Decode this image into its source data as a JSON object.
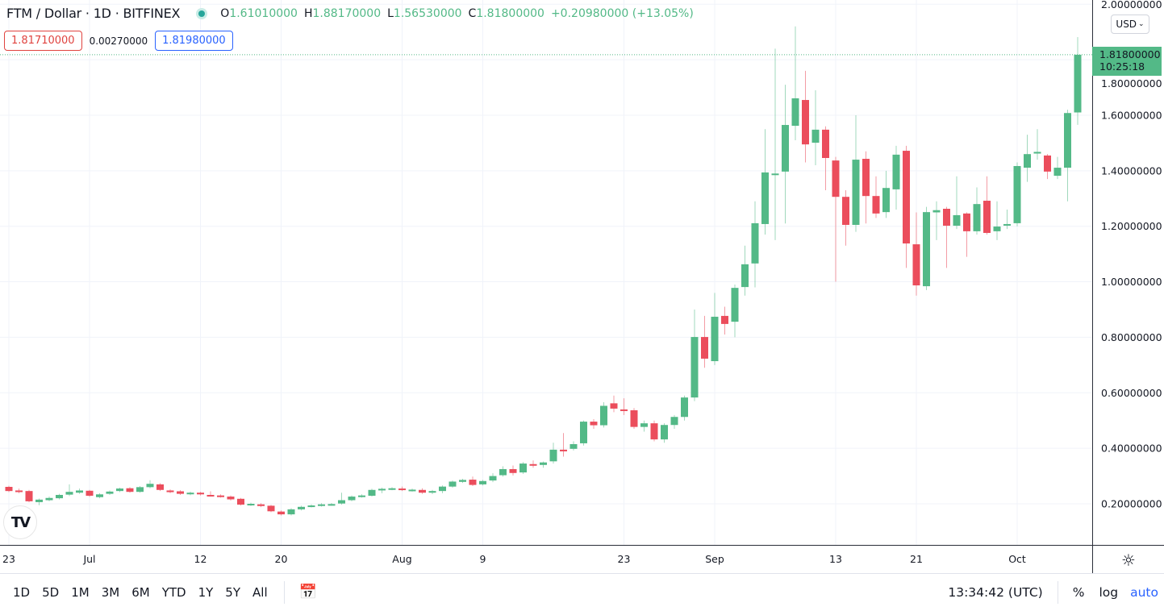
{
  "header": {
    "symbol": "FTM / Dollar · 1D · BITFINEX",
    "open_label": "O",
    "open": "1.61010000",
    "high_label": "H",
    "high": "1.88170000",
    "low_label": "L",
    "low": "1.56530000",
    "close_label": "C",
    "close": "1.81800000",
    "change": "+0.20980000 (+13.05%)"
  },
  "quote": {
    "sell": "1.81710000",
    "spread": "0.00270000",
    "buy": "1.81980000"
  },
  "currency": "USD",
  "last_price": {
    "price": "1.81800000",
    "countdown": "10:25:18"
  },
  "logo": "TV",
  "toolbar": {
    "ranges": [
      "1D",
      "5D",
      "1M",
      "3M",
      "6M",
      "YTD",
      "1Y",
      "5Y",
      "All"
    ],
    "time": "13:34:42 (UTC)",
    "percent": "%",
    "log": "log",
    "auto": "auto"
  },
  "colors": {
    "up": "#53b987",
    "down": "#eb4d5c",
    "grid": "#f0f3fa",
    "accent": "#2962ff"
  },
  "chart_data": {
    "type": "candlestick",
    "ylim": [
      0,
      2.0
    ],
    "yticks": [
      "0.20000000",
      "0.40000000",
      "0.60000000",
      "0.80000000",
      "1.00000000",
      "1.20000000",
      "1.40000000",
      "1.60000000",
      "1.80000000",
      "2.00000000"
    ],
    "xticks": [
      {
        "date": "Jun 23",
        "label": "23"
      },
      {
        "date": "Jul 1",
        "label": "Jul"
      },
      {
        "date": "Jul 12",
        "label": "12"
      },
      {
        "date": "Jul 20",
        "label": "20"
      },
      {
        "date": "Aug 1",
        "label": "Aug"
      },
      {
        "date": "Aug 9",
        "label": "9"
      },
      {
        "date": "Aug 23",
        "label": "23"
      },
      {
        "date": "Sep 1",
        "label": "Sep"
      },
      {
        "date": "Sep 13",
        "label": "13"
      },
      {
        "date": "Sep 21",
        "label": "21"
      },
      {
        "date": "Oct 1",
        "label": "Oct"
      }
    ],
    "grid": true,
    "columns": [
      "date",
      "open",
      "high",
      "low",
      "close"
    ],
    "candles": [
      [
        "Jun 23",
        0.261,
        0.265,
        0.242,
        0.246
      ],
      [
        "Jun 24",
        0.248,
        0.255,
        0.238,
        0.243
      ],
      [
        "Jun 25",
        0.246,
        0.25,
        0.205,
        0.209
      ],
      [
        "Jun 26",
        0.206,
        0.219,
        0.195,
        0.215
      ],
      [
        "Jun 27",
        0.213,
        0.226,
        0.209,
        0.221
      ],
      [
        "Jun 28",
        0.22,
        0.236,
        0.216,
        0.232
      ],
      [
        "Jun 29",
        0.233,
        0.27,
        0.228,
        0.243
      ],
      [
        "Jun 30",
        0.24,
        0.255,
        0.236,
        0.248
      ],
      [
        "Jul 1",
        0.247,
        0.25,
        0.225,
        0.229
      ],
      [
        "Jul 2",
        0.224,
        0.238,
        0.22,
        0.234
      ],
      [
        "Jul 3",
        0.236,
        0.248,
        0.232,
        0.244
      ],
      [
        "Jul 4",
        0.246,
        0.258,
        0.242,
        0.255
      ],
      [
        "Jul 5",
        0.256,
        0.26,
        0.24,
        0.243
      ],
      [
        "Jul 6",
        0.243,
        0.264,
        0.24,
        0.26
      ],
      [
        "Jul 7",
        0.26,
        0.285,
        0.256,
        0.272
      ],
      [
        "Jul 8",
        0.27,
        0.274,
        0.246,
        0.25
      ],
      [
        "Jul 9",
        0.248,
        0.252,
        0.238,
        0.242
      ],
      [
        "Jul 10",
        0.245,
        0.249,
        0.232,
        0.236
      ],
      [
        "Jul 11",
        0.235,
        0.244,
        0.231,
        0.24
      ],
      [
        "Jul 12",
        0.24,
        0.243,
        0.23,
        0.234
      ],
      [
        "Jul 13",
        0.232,
        0.245,
        0.226,
        0.23
      ],
      [
        "Jul 14",
        0.23,
        0.234,
        0.222,
        0.226
      ],
      [
        "Jul 15",
        0.226,
        0.23,
        0.212,
        0.216
      ],
      [
        "Jul 16",
        0.218,
        0.221,
        0.194,
        0.197
      ],
      [
        "Jul 17",
        0.198,
        0.204,
        0.192,
        0.2
      ],
      [
        "Jul 18",
        0.198,
        0.202,
        0.188,
        0.192
      ],
      [
        "Jul 19",
        0.193,
        0.196,
        0.17,
        0.173
      ],
      [
        "Jul 20",
        0.172,
        0.176,
        0.158,
        0.162
      ],
      [
        "Jul 21",
        0.162,
        0.184,
        0.158,
        0.18
      ],
      [
        "Jul 22",
        0.18,
        0.193,
        0.176,
        0.189
      ],
      [
        "Jul 23",
        0.191,
        0.198,
        0.187,
        0.194
      ],
      [
        "Jul 24",
        0.194,
        0.202,
        0.19,
        0.198
      ],
      [
        "Jul 25",
        0.197,
        0.203,
        0.193,
        0.199
      ],
      [
        "Jul 26",
        0.201,
        0.24,
        0.197,
        0.213
      ],
      [
        "Jul 27",
        0.213,
        0.23,
        0.209,
        0.226
      ],
      [
        "Jul 28",
        0.227,
        0.234,
        0.222,
        0.23
      ],
      [
        "Jul 29",
        0.229,
        0.254,
        0.226,
        0.25
      ],
      [
        "Jul 30",
        0.251,
        0.258,
        0.238,
        0.254
      ],
      [
        "Jul 31",
        0.253,
        0.26,
        0.249,
        0.256
      ],
      [
        "Aug 1",
        0.255,
        0.262,
        0.246,
        0.25
      ],
      [
        "Aug 2",
        0.249,
        0.255,
        0.244,
        0.251
      ],
      [
        "Aug 3",
        0.25,
        0.256,
        0.236,
        0.24
      ],
      [
        "Aug 4",
        0.24,
        0.25,
        0.235,
        0.246
      ],
      [
        "Aug 5",
        0.246,
        0.266,
        0.238,
        0.262
      ],
      [
        "Aug 6",
        0.262,
        0.284,
        0.258,
        0.28
      ],
      [
        "Aug 7",
        0.279,
        0.29,
        0.275,
        0.286
      ],
      [
        "Aug 8",
        0.287,
        0.298,
        0.264,
        0.268
      ],
      [
        "Aug 9",
        0.27,
        0.286,
        0.266,
        0.282
      ],
      [
        "Aug 10",
        0.284,
        0.31,
        0.278,
        0.3
      ],
      [
        "Aug 11",
        0.303,
        0.335,
        0.298,
        0.325
      ],
      [
        "Aug 12",
        0.325,
        0.338,
        0.302,
        0.311
      ],
      [
        "Aug 13",
        0.313,
        0.35,
        0.308,
        0.345
      ],
      [
        "Aug 14",
        0.343,
        0.356,
        0.33,
        0.34
      ],
      [
        "Aug 15",
        0.34,
        0.352,
        0.33,
        0.349
      ],
      [
        "Aug 16",
        0.353,
        0.42,
        0.345,
        0.395
      ],
      [
        "Aug 17",
        0.395,
        0.455,
        0.37,
        0.389
      ],
      [
        "Aug 18",
        0.398,
        0.425,
        0.392,
        0.415
      ],
      [
        "Aug 19",
        0.418,
        0.5,
        0.41,
        0.496
      ],
      [
        "Aug 20",
        0.496,
        0.505,
        0.47,
        0.483
      ],
      [
        "Aug 21",
        0.483,
        0.566,
        0.475,
        0.553
      ],
      [
        "Aug 22",
        0.562,
        0.59,
        0.53,
        0.543
      ],
      [
        "Aug 23",
        0.54,
        0.58,
        0.52,
        0.537
      ],
      [
        "Aug 24",
        0.537,
        0.545,
        0.47,
        0.477
      ],
      [
        "Aug 25",
        0.477,
        0.5,
        0.46,
        0.49
      ],
      [
        "Aug 26",
        0.49,
        0.5,
        0.425,
        0.432
      ],
      [
        "Aug 27",
        0.432,
        0.49,
        0.42,
        0.484
      ],
      [
        "Aug 28",
        0.484,
        0.52,
        0.47,
        0.513
      ],
      [
        "Aug 29",
        0.513,
        0.59,
        0.5,
        0.583
      ],
      [
        "Aug 30",
        0.583,
        0.9,
        0.57,
        0.801
      ],
      [
        "Aug 31",
        0.801,
        0.877,
        0.69,
        0.723
      ],
      [
        "Sep 1",
        0.714,
        0.96,
        0.7,
        0.874
      ],
      [
        "Sep 2",
        0.877,
        0.91,
        0.81,
        0.848
      ],
      [
        "Sep 3",
        0.856,
        0.99,
        0.8,
        0.978
      ],
      [
        "Sep 4",
        0.981,
        1.13,
        0.95,
        1.063
      ],
      [
        "Sep 5",
        1.066,
        1.29,
        0.98,
        1.211
      ],
      [
        "Sep 6",
        1.208,
        1.55,
        1.17,
        1.394
      ],
      [
        "Sep 7",
        1.388,
        1.84,
        1.15,
        1.39
      ],
      [
        "Sep 8",
        1.397,
        1.71,
        1.21,
        1.565
      ],
      [
        "Sep 9",
        1.562,
        1.92,
        1.51,
        1.661
      ],
      [
        "Sep 10",
        1.655,
        1.76,
        1.43,
        1.495
      ],
      [
        "Sep 11",
        1.501,
        1.69,
        1.42,
        1.548
      ],
      [
        "Sep 12",
        1.548,
        1.56,
        1.33,
        1.446
      ],
      [
        "Sep 13",
        1.437,
        1.45,
        1.0,
        1.306
      ],
      [
        "Sep 14",
        1.306,
        1.33,
        1.13,
        1.205
      ],
      [
        "Sep 15",
        1.205,
        1.6,
        1.18,
        1.44
      ],
      [
        "Sep 16",
        1.443,
        1.47,
        1.21,
        1.309
      ],
      [
        "Sep 17",
        1.309,
        1.38,
        1.23,
        1.246
      ],
      [
        "Sep 18",
        1.251,
        1.4,
        1.23,
        1.338
      ],
      [
        "Sep 19",
        1.333,
        1.49,
        1.26,
        1.458
      ],
      [
        "Sep 20",
        1.472,
        1.49,
        1.05,
        1.138
      ],
      [
        "Sep 21",
        1.135,
        1.25,
        0.95,
        0.987
      ],
      [
        "Sep 22",
        0.984,
        1.27,
        0.97,
        1.251
      ],
      [
        "Sep 23",
        1.25,
        1.29,
        1.15,
        1.258
      ],
      [
        "Sep 24",
        1.263,
        1.27,
        1.05,
        1.202
      ],
      [
        "Sep 25",
        1.202,
        1.38,
        1.19,
        1.24
      ],
      [
        "Sep 26",
        1.246,
        1.25,
        1.09,
        1.182
      ],
      [
        "Sep 27",
        1.182,
        1.34,
        1.17,
        1.28
      ],
      [
        "Sep 28",
        1.292,
        1.38,
        1.17,
        1.176
      ],
      [
        "Sep 29",
        1.182,
        1.29,
        1.15,
        1.199
      ],
      [
        "Sep 30",
        1.203,
        1.26,
        1.19,
        1.208
      ],
      [
        "Oct 1",
        1.211,
        1.43,
        1.2,
        1.417
      ],
      [
        "Oct 2",
        1.411,
        1.53,
        1.36,
        1.46
      ],
      [
        "Oct 3",
        1.462,
        1.55,
        1.44,
        1.468
      ],
      [
        "Oct 4",
        1.455,
        1.46,
        1.37,
        1.397
      ],
      [
        "Oct 5",
        1.382,
        1.45,
        1.37,
        1.411
      ],
      [
        "Oct 6",
        1.411,
        1.62,
        1.29,
        1.608
      ],
      [
        "Oct 7",
        1.6101,
        1.8817,
        1.5653,
        1.818
      ]
    ]
  }
}
